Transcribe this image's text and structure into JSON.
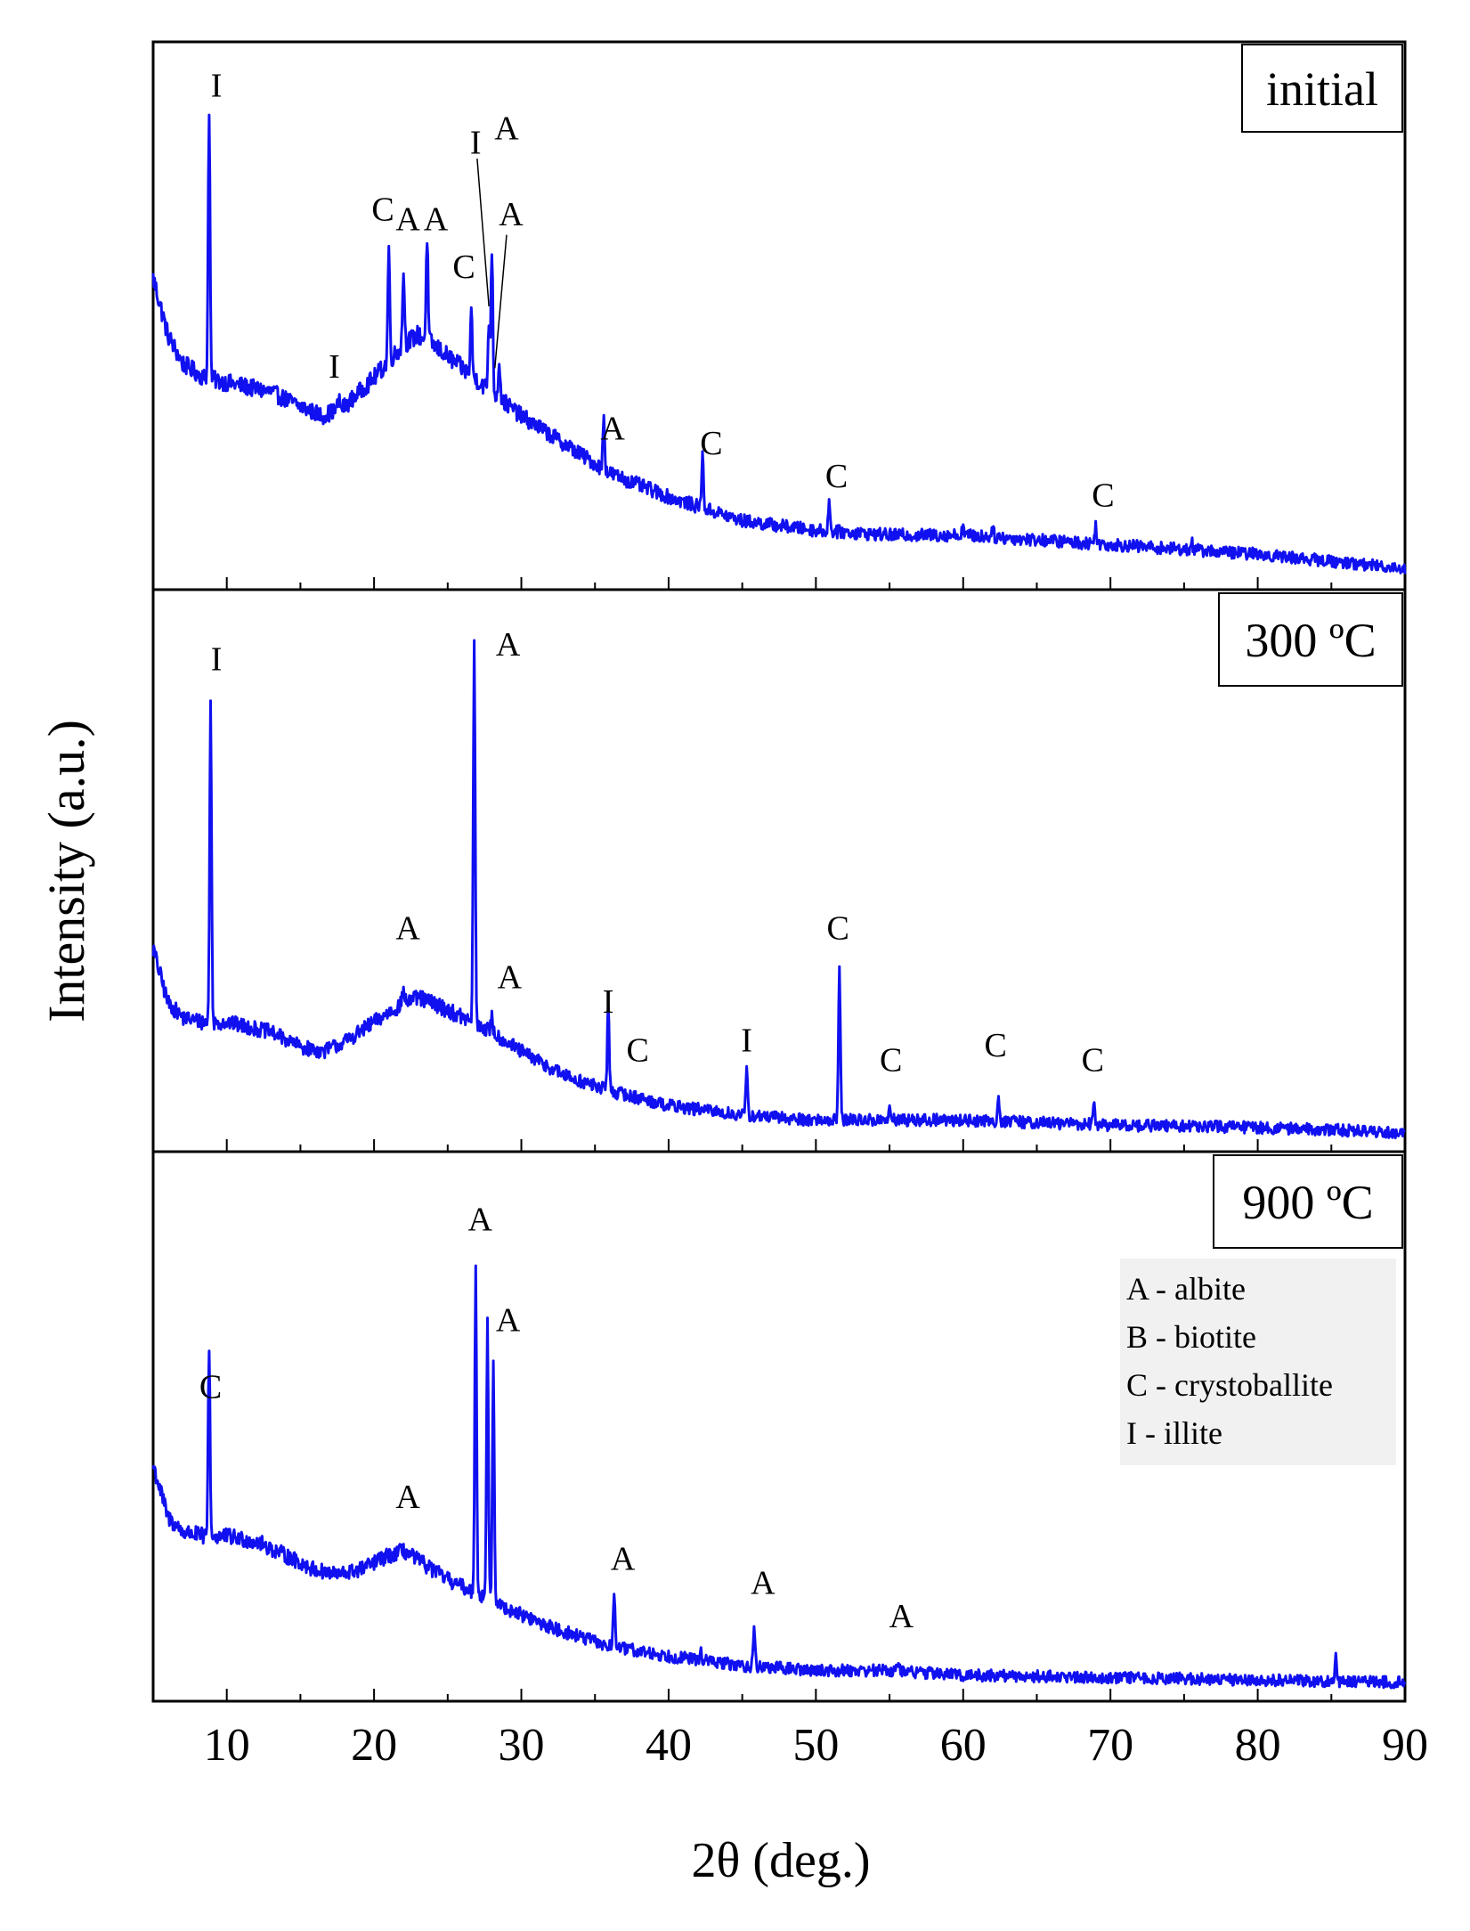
{
  "chart_data": {
    "type": "line",
    "xlabel": "2θ (deg.)",
    "ylabel": "Intensity (a.u.)",
    "xlim": [
      5,
      90
    ],
    "xticks": [
      "10",
      "20",
      "30",
      "40",
      "50",
      "60",
      "70",
      "80",
      "90"
    ],
    "series_color": "#1010f0",
    "panels": [
      {
        "name": "initial",
        "label": "initial",
        "ylim": [
          0,
          100
        ],
        "baseline": [
          [
            5,
            62
          ],
          [
            6,
            50
          ],
          [
            7,
            44
          ],
          [
            8.5,
            41
          ],
          [
            10,
            40
          ],
          [
            13,
            38
          ],
          [
            15,
            35
          ],
          [
            16.5,
            33
          ],
          [
            18,
            35
          ],
          [
            20,
            41
          ],
          [
            22,
            48
          ],
          [
            23,
            50
          ],
          [
            24,
            48
          ],
          [
            26,
            43
          ],
          [
            28,
            38
          ],
          [
            30,
            33
          ],
          [
            33,
            27
          ],
          [
            36,
            21
          ],
          [
            40,
            16
          ],
          [
            45,
            11
          ],
          [
            50,
            9
          ],
          [
            55,
            8
          ],
          [
            60,
            8
          ],
          [
            70,
            6
          ],
          [
            80,
            4
          ],
          [
            90,
            1
          ]
        ],
        "peaks": [
          [
            8.8,
            57
          ],
          [
            17.6,
            2
          ],
          [
            21,
            24
          ],
          [
            22,
            16
          ],
          [
            23.6,
            22
          ],
          [
            26.6,
            14
          ],
          [
            27.8,
            14
          ],
          [
            28,
            30
          ],
          [
            28.5,
            8
          ],
          [
            35.6,
            11
          ],
          [
            42.3,
            11
          ],
          [
            50.9,
            6
          ],
          [
            69,
            4
          ],
          [
            60,
            2
          ],
          [
            62,
            2
          ],
          [
            75.5,
            2
          ]
        ],
        "annotations": [
          {
            "text": "I",
            "x": 9.3,
            "y": 100
          },
          {
            "text": "I",
            "x": 17.3,
            "y": 41
          },
          {
            "text": "C",
            "x": 20.6,
            "y": 74
          },
          {
            "text": "A",
            "x": 22.3,
            "y": 72
          },
          {
            "text": "A",
            "x": 24.2,
            "y": 72
          },
          {
            "text": "C",
            "x": 26.1,
            "y": 62
          },
          {
            "text": "I",
            "x": 26.9,
            "y": 88
          },
          {
            "text": "A",
            "x": 29,
            "y": 91
          },
          {
            "text": "A",
            "x": 29.3,
            "y": 73
          },
          {
            "text": "A",
            "x": 36.2,
            "y": 28
          },
          {
            "text": "C",
            "x": 42.9,
            "y": 25
          },
          {
            "text": "C",
            "x": 51.4,
            "y": 18
          },
          {
            "text": "C",
            "x": 69.5,
            "y": 14
          }
        ],
        "leaders": [
          [
            27,
            87,
            27.8,
            56
          ],
          [
            29,
            71,
            28.2,
            43
          ]
        ]
      },
      {
        "name": "300C",
        "label": "300 ºC",
        "ylim": [
          0,
          100
        ],
        "baseline": [
          [
            5,
            38
          ],
          [
            6,
            27
          ],
          [
            7,
            24
          ],
          [
            8.5,
            23
          ],
          [
            10,
            23
          ],
          [
            13,
            21
          ],
          [
            15,
            18
          ],
          [
            16.5,
            17
          ],
          [
            18,
            19
          ],
          [
            20,
            23
          ],
          [
            22,
            27
          ],
          [
            23,
            28
          ],
          [
            24,
            27
          ],
          [
            26,
            24
          ],
          [
            28,
            21
          ],
          [
            30,
            17
          ],
          [
            33,
            12
          ],
          [
            36,
            9
          ],
          [
            40,
            6
          ],
          [
            45,
            4
          ],
          [
            50,
            3
          ],
          [
            55,
            3
          ],
          [
            60,
            3
          ],
          [
            70,
            2
          ],
          [
            80,
            1.5
          ],
          [
            90,
            0.5
          ]
        ],
        "peaks": [
          [
            8.9,
            66
          ],
          [
            22,
            3
          ],
          [
            26.8,
            79
          ],
          [
            28,
            3
          ],
          [
            35.9,
            18
          ],
          [
            45.3,
            9
          ],
          [
            51.6,
            32
          ],
          [
            55,
            2
          ],
          [
            62.4,
            5
          ],
          [
            68.9,
            4
          ]
        ],
        "annotations": [
          {
            "text": "I",
            "x": 9.3,
            "y": 95
          },
          {
            "text": "A",
            "x": 29.1,
            "y": 98
          },
          {
            "text": "A",
            "x": 22.3,
            "y": 40
          },
          {
            "text": "A",
            "x": 29.2,
            "y": 30
          },
          {
            "text": "I",
            "x": 35.9,
            "y": 25
          },
          {
            "text": "C",
            "x": 37.9,
            "y": 15
          },
          {
            "text": "I",
            "x": 45.3,
            "y": 17
          },
          {
            "text": "C",
            "x": 51.5,
            "y": 40
          },
          {
            "text": "C",
            "x": 55.1,
            "y": 13
          },
          {
            "text": "C",
            "x": 62.2,
            "y": 16
          },
          {
            "text": "C",
            "x": 68.8,
            "y": 13
          }
        ],
        "leaders": []
      },
      {
        "name": "900C",
        "label": "900 ºC",
        "ylim": [
          0,
          100
        ],
        "baseline": [
          [
            5,
            46
          ],
          [
            6,
            35
          ],
          [
            7,
            32
          ],
          [
            8.5,
            31
          ],
          [
            10,
            31
          ],
          [
            12,
            30
          ],
          [
            14,
            27
          ],
          [
            16,
            24
          ],
          [
            17.5,
            23
          ],
          [
            19,
            24
          ],
          [
            21,
            27
          ],
          [
            22,
            28
          ],
          [
            23,
            26
          ],
          [
            25,
            22
          ],
          [
            27,
            19
          ],
          [
            29,
            16
          ],
          [
            32,
            12
          ],
          [
            36,
            8
          ],
          [
            40,
            6
          ],
          [
            45,
            4
          ],
          [
            50,
            3
          ],
          [
            55,
            3
          ],
          [
            60,
            2
          ],
          [
            70,
            1.5
          ],
          [
            80,
            1
          ],
          [
            90,
            0.5
          ]
        ],
        "peaks": [
          [
            8.8,
            40
          ],
          [
            26.9,
            68
          ],
          [
            27.7,
            59
          ],
          [
            28.1,
            49
          ],
          [
            36.3,
            12
          ],
          [
            45.8,
            8
          ],
          [
            55.6,
            1.5
          ],
          [
            85.3,
            5
          ],
          [
            42.2,
            2
          ]
        ],
        "annotations": [
          {
            "text": "C",
            "x": 8.9,
            "y": 60
          },
          {
            "text": "A",
            "x": 27.2,
            "y": 95
          },
          {
            "text": "A",
            "x": 29.1,
            "y": 74
          },
          {
            "text": "A",
            "x": 22.3,
            "y": 37
          },
          {
            "text": "A",
            "x": 36.9,
            "y": 24
          },
          {
            "text": "A",
            "x": 46.4,
            "y": 19
          },
          {
            "text": "A",
            "x": 55.8,
            "y": 12
          }
        ],
        "leaders": []
      }
    ],
    "legend": {
      "position": "right",
      "items": [
        "A - albite",
        "B - biotite",
        "C - crystoballite",
        "I - illite"
      ]
    }
  }
}
